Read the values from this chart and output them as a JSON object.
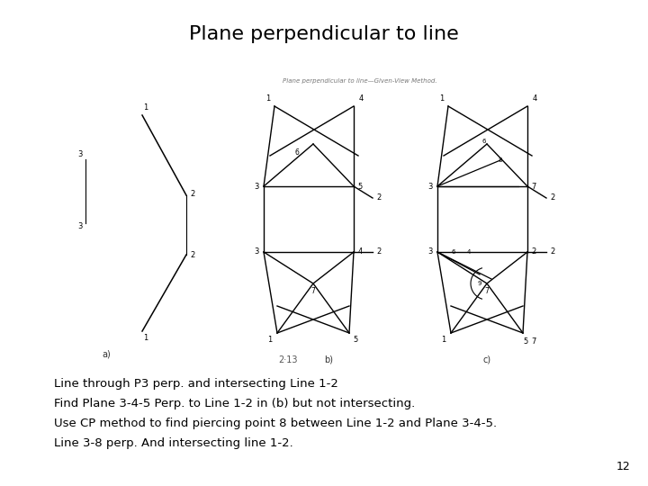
{
  "title": "Plane perpendicular to line",
  "body_lines": [
    "Line through P3 perp. and intersecting Line 1-2",
    "Find Plane 3-4-5 Perp. to Line 1-2 in (b) but not intersecting.",
    "Use CP method to find piercing point 8 between Line 1-2 and Plane 3-4-5.",
    "Line 3-8 perp. And intersecting line 1-2."
  ],
  "page_number": "12",
  "bg_color": "#ffffff",
  "title_fontsize": 16,
  "body_fontsize": 9.5,
  "page_num_fontsize": 9
}
